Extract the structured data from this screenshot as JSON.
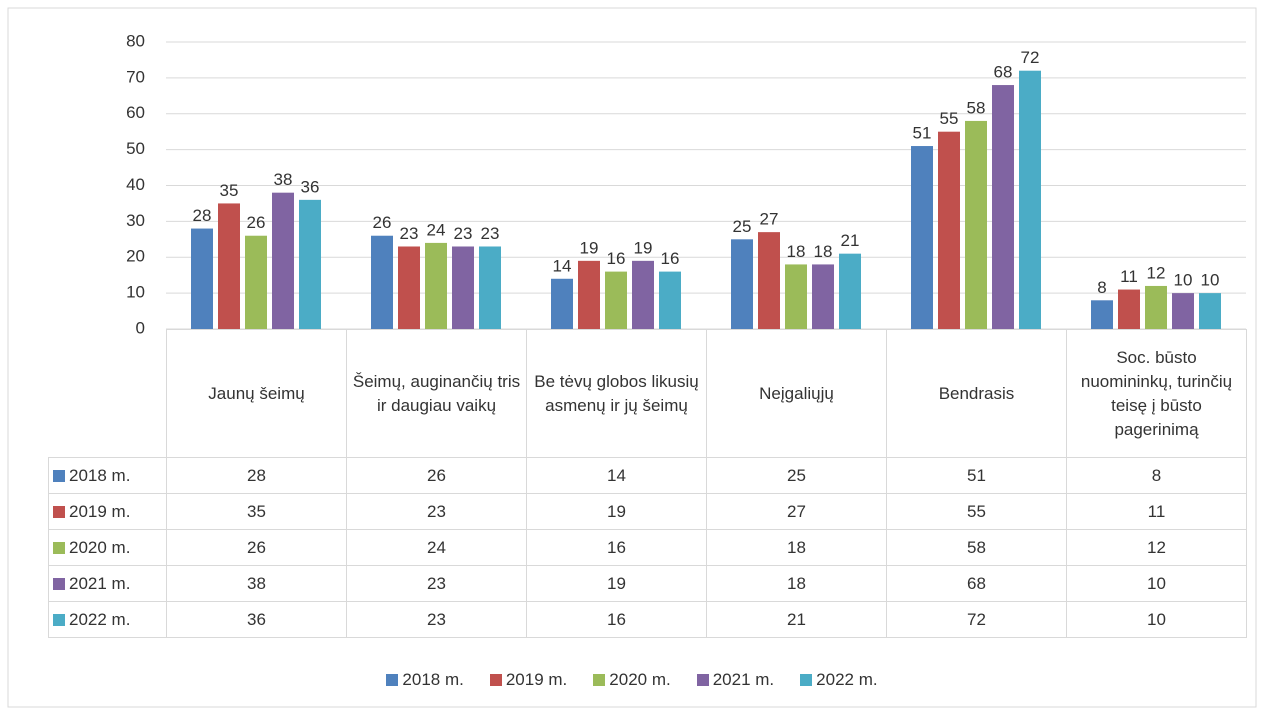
{
  "chart_data": {
    "type": "bar",
    "categories": [
      "Jaunų šeimų",
      "Šeimų, auginančių tris ir daugiau vaikų",
      "Be tėvų globos likusių asmenų ir jų šeimų",
      "Neįgaliųjų",
      "Bendrasis",
      "Soc. būsto nuomininkų, turinčių teisę į būsto pagerinimą"
    ],
    "series": [
      {
        "name": "2018 m.",
        "color": "#4f81bd",
        "values": [
          28,
          26,
          14,
          25,
          51,
          8
        ]
      },
      {
        "name": "2019 m.",
        "color": "#c0504d",
        "values": [
          35,
          23,
          19,
          27,
          55,
          11
        ]
      },
      {
        "name": "2020 m.",
        "color": "#9bbb59",
        "values": [
          26,
          24,
          16,
          18,
          58,
          12
        ]
      },
      {
        "name": "2021 m.",
        "color": "#8064a2",
        "values": [
          38,
          23,
          19,
          18,
          68,
          10
        ]
      },
      {
        "name": "2022 m.",
        "color": "#4bacc6",
        "values": [
          36,
          23,
          16,
          21,
          72,
          10
        ]
      }
    ],
    "ylim": [
      0,
      80
    ],
    "yticks": [
      0,
      10,
      20,
      30,
      40,
      50,
      60,
      70,
      80
    ],
    "grid": true,
    "legend": "bottom",
    "data_table": true
  }
}
